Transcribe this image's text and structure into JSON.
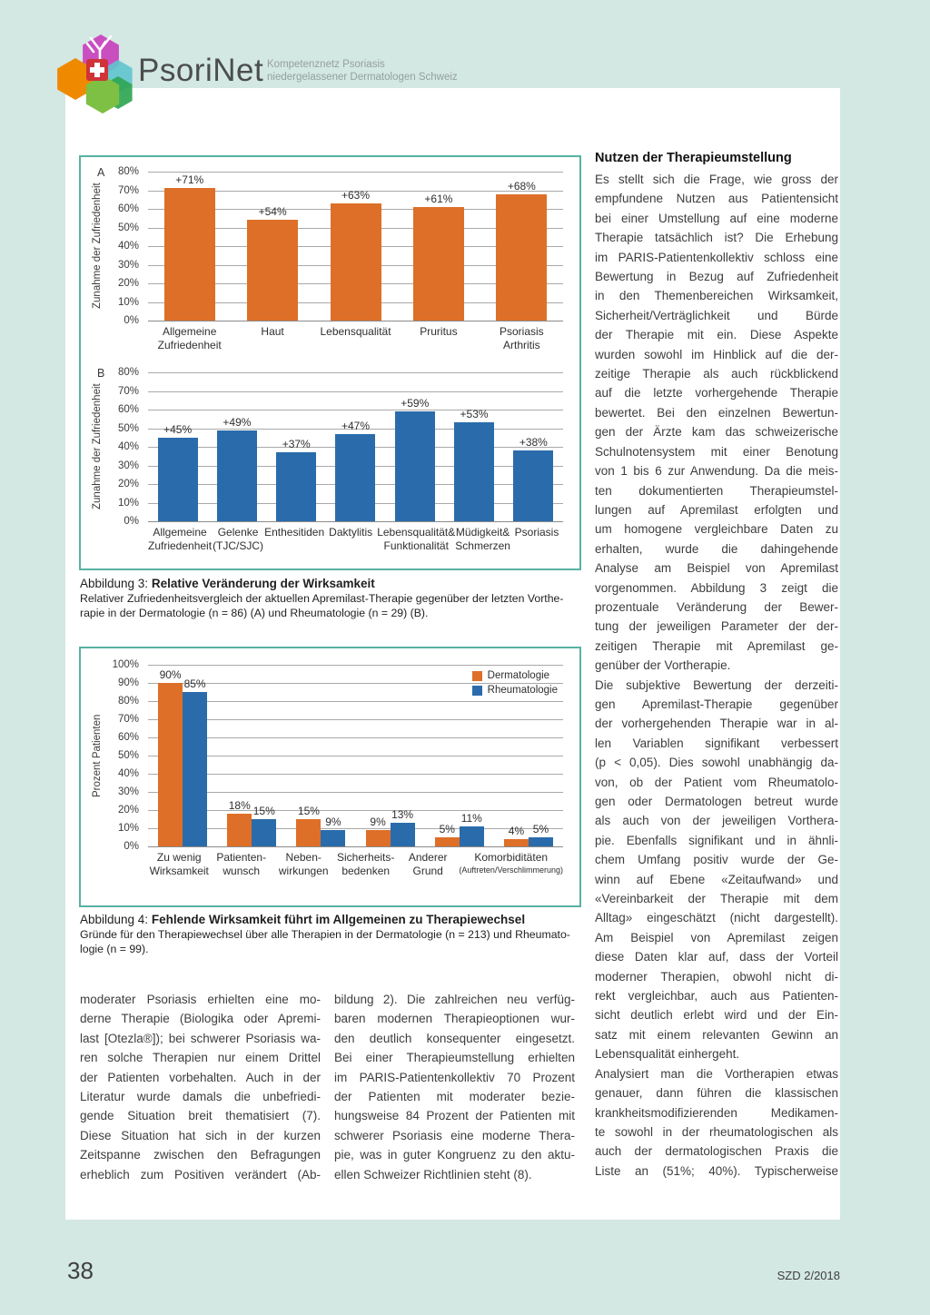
{
  "header": {
    "brand": "PsoriNet",
    "tagline_line1": "Kompetenznetz Psoriasis",
    "tagline_line2": "niedergelassener Dermatologen Schweiz"
  },
  "colors": {
    "page_background": "#d3e7e3",
    "panel_background": "#ffffff",
    "figure_border": "#57b2a3",
    "dermatologie_orange": "#de6f28",
    "rheumatologie_blue": "#2a6cab"
  },
  "chart_data": [
    {
      "type": "bar",
      "panel_label": "A",
      "ylabel": "Zunahme der Zufriedenheit",
      "ylim": [
        0,
        80
      ],
      "ytick_step": 10,
      "grid": true,
      "color": "#de6f28",
      "categories": [
        "Allgemeine\nZufriedenheit",
        "Haut",
        "Lebensqualität",
        "Pruritus",
        "Psoriasis\nArthritis"
      ],
      "values": [
        71,
        54,
        63,
        61,
        68
      ],
      "bar_labels": [
        "+71%",
        "+54%",
        "+63%",
        "+61%",
        "+68%"
      ]
    },
    {
      "type": "bar",
      "panel_label": "B",
      "ylabel": "Zunahme der Zufriedenheit",
      "ylim": [
        0,
        80
      ],
      "ytick_step": 10,
      "grid": true,
      "color": "#2a6cab",
      "categories": [
        "Allgemeine\nZufriedenheit",
        "Gelenke\n(TJC/SJC)",
        "Enthesitiden",
        "Daktylitis",
        "Lebensqualität&\nFunktionalität",
        "Müdigkeit&\nSchmerzen",
        "Psoriasis"
      ],
      "values": [
        45,
        49,
        37,
        47,
        59,
        53,
        38
      ],
      "bar_labels": [
        "+45%",
        "+49%",
        "+37%",
        "+47%",
        "+59%",
        "+53%",
        "+38%"
      ]
    },
    {
      "type": "grouped-bar",
      "ylabel": "Prozent Patienten",
      "ylim": [
        0,
        100
      ],
      "ytick_step": 10,
      "grid": true,
      "legend_position": "top-right",
      "categories": [
        "Zu wenig\nWirksamkeit",
        "Patienten-\nwunsch",
        "Neben-\nwirkungen",
        "Sicherheits-\nbedenken",
        "Anderer\nGrund",
        "Komorbiditäten\n(Auftreten/Verschlimmerung)"
      ],
      "series": [
        {
          "name": "Dermatologie",
          "color": "#de6f28",
          "values": [
            90,
            18,
            15,
            9,
            5,
            4
          ],
          "labels": [
            "90%",
            "18%",
            "15%",
            "9%",
            "5%",
            "4%"
          ]
        },
        {
          "name": "Rheumatologie",
          "color": "#2a6cab",
          "values": [
            85,
            15,
            9,
            13,
            11,
            5
          ],
          "labels": [
            "85%",
            "15%",
            "9%",
            "13%",
            "11%",
            "5%"
          ]
        }
      ]
    }
  ],
  "figure3": {
    "label": "Abbildung 3:",
    "title": "Relative Veränderung der Wirksamkeit",
    "caption_lines": [
      "Relativer Zufriedenheitsvergleich der aktuellen Apremilast-Therapie gegenüber der letzten Vorthe-",
      "rapie in der Dermatologie (n = 86) (A) und Rheumatologie (n = 29) (B)."
    ]
  },
  "figure4": {
    "label": "Abbildung 4:",
    "title": "Fehlende Wirksamkeit führt im Allgemeinen zu Therapiewechsel",
    "caption_lines": [
      "Gründe für den Therapiewechsel über alle Therapien in der Dermatologie (n = 213) und Rheumato-",
      "logie (n = 99)."
    ]
  },
  "article": {
    "left_column": {
      "continued": true,
      "lines": [
        "moderater Psoriasis erhielten eine mo-",
        "derne Therapie (Biologika oder Apremi-",
        "last [Otezla®]); bei schwerer Psoriasis wa-",
        "ren solche Therapien nur einem Drittel",
        "der Patienten vorbehalten. Auch in der",
        "Literatur wurde damals die unbefriedi-",
        "gende Situation breit thematisiert (7).",
        "Diese Situation hat sich in der kurzen",
        "Zeitspanne zwischen den Befragungen",
        "erheblich zum Positiven verändert (Ab-"
      ]
    },
    "middle_column": {
      "continued": false,
      "lines": [
        "bildung 2). Die zahlreichen neu verfüg-",
        "baren modernen Therapieoptionen wur-",
        "den deutlich konsequenter eingesetzt.",
        "Bei einer Therapieumstellung erhielten",
        "im PARIS-Patientenkollektiv 70 Prozent",
        "der Patienten mit moderater bezie-",
        "hungsweise 84 Prozent der Patienten mit",
        "schwerer Psoriasis eine moderne Thera-",
        "pie, was in guter Kongruenz zu den aktu-",
        "ellen Schweizer Richtlinien steht (8)."
      ]
    },
    "right_column": {
      "heading": "Nutzen der Therapieumstellung",
      "paragraphs": [
        {
          "continued": false,
          "lines": [
            "Es stellt sich die Frage, wie gross der",
            "empfundene Nutzen aus Patientensicht",
            "bei einer Umstellung auf eine moderne",
            "Therapie tatsächlich ist? Die Erhebung",
            "im PARIS-Patientenkollektiv schloss eine",
            "Bewertung in Bezug auf Zufriedenheit",
            "in den Themenbereichen Wirksamkeit,",
            "Sicherheit/Verträglichkeit und Bürde",
            "der Therapie mit ein. Diese Aspekte",
            "wurden sowohl im Hinblick auf die der-",
            "zeitige Therapie als auch rückblickend",
            "auf die letzte vorhergehende Therapie",
            "bewertet. Bei den einzelnen Bewertun-",
            "gen der Ärzte kam das schweizerische",
            "Schulnotensystem mit einer Benotung",
            "von 1 bis 6 zur Anwendung. Da die meis-",
            "ten dokumentierten Therapieumstel-",
            "lungen auf Apremilast erfolgten und",
            "um homogene vergleichbare Daten zu",
            "erhalten, wurde die dahingehende",
            "Analyse am Beispiel von Apremilast",
            "vorgenommen. Abbildung 3 zeigt die",
            "prozentuale Veränderung der Bewer-",
            "tung der jeweiligen Parameter der der-",
            "zeitigen Therapie mit Apremilast ge-",
            "genüber der Vortherapie."
          ]
        },
        {
          "continued": false,
          "lines": [
            "Die subjektive Bewertung der derzeiti-",
            "gen Apremilast-Therapie gegenüber",
            "der vorhergehenden Therapie war in al-",
            "len Variablen signifikant verbessert",
            "(p < 0,05). Dies sowohl unabhängig da-",
            "von, ob der Patient vom Rheumatolo-",
            "gen oder Dermatologen betreut wurde",
            "als auch von der jeweiligen Vorthera-",
            "pie. Ebenfalls signifikant und in ähnli-",
            "chem Umfang positiv wurde der Ge-",
            "winn auf Ebene «Zeitaufwand» und",
            "«Vereinbarkeit der Therapie mit dem",
            "Alltag» eingeschätzt (nicht dargestellt).",
            "Am Beispiel von Apremilast zeigen",
            "diese Daten klar auf, dass der Vorteil",
            "moderner Therapien, obwohl nicht di-",
            "rekt vergleichbar, auch aus Patienten-",
            "sicht deutlich erlebt wird und der Ein-",
            "satz mit einem relevanten Gewinn an",
            "Lebensqualität einhergeht."
          ]
        },
        {
          "continued": true,
          "lines": [
            "Analysiert man die Vortherapien etwas",
            "genauer, dann führen die klassischen",
            "krankheitsmodifizierenden Medikamen-",
            "te sowohl in der rheumatologischen als",
            "auch der dermatologischen Praxis die",
            "Liste an (51%; 40%). Typischerweise"
          ]
        }
      ]
    }
  },
  "footer": {
    "page_number": "38",
    "journal": "SZD 2/2018"
  }
}
